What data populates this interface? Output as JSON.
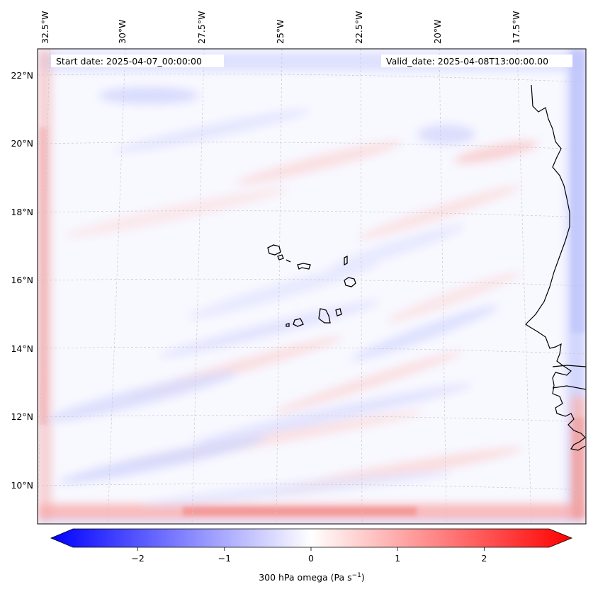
{
  "map": {
    "start_label": "Start date: 2025-04-07_00:00:00",
    "valid_label": "Valid_date: 2025-04-08T13:00:00.00",
    "lon_labels": [
      "32.5°W",
      "30°W",
      "27.5°W",
      "25°W",
      "22.5°W",
      "20°W",
      "17.5°W"
    ],
    "lat_labels": [
      "22°N",
      "20°N",
      "18°N",
      "16°N",
      "14°N",
      "12°N",
      "10°N"
    ],
    "field_name": "300 hPa omega",
    "gridlines": true
  },
  "colorbar": {
    "label_prefix": "300 hPa omega (Pa s",
    "label_exp": "−1",
    "label_suffix": ")",
    "ticks": [
      "−2",
      "−1",
      "0",
      "1",
      "2"
    ],
    "range": [
      -2.75,
      2.75
    ],
    "colors": {
      "negative": "#0000ff",
      "zero": "#ffffff",
      "positive": "#ff0000"
    },
    "extend": "both"
  }
}
